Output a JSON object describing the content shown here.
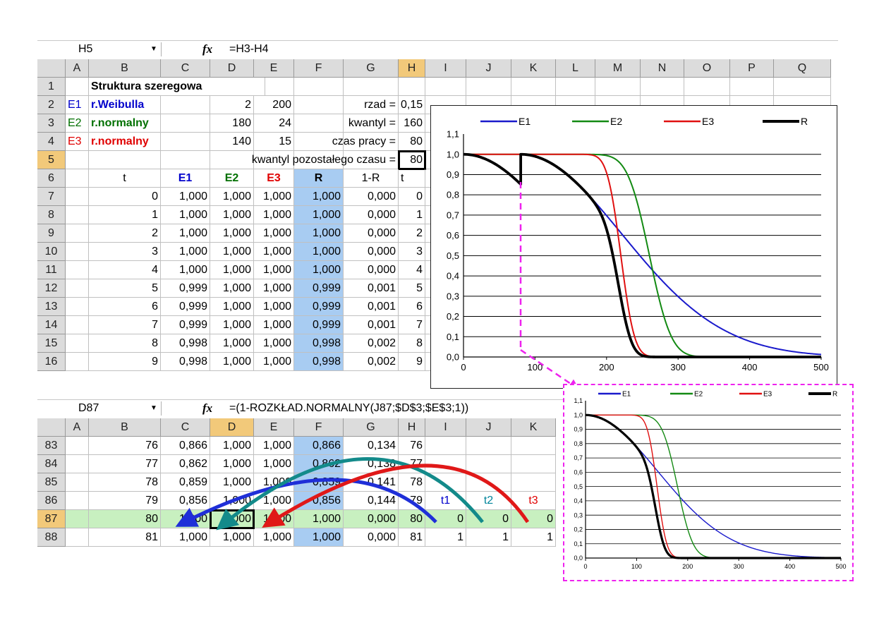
{
  "sheet1": {
    "namebox": "H5",
    "formula": "=H3-H4",
    "fx_label": "fx",
    "columns": [
      "A",
      "B",
      "C",
      "D",
      "E",
      "F",
      "G",
      "H",
      "I",
      "J",
      "K",
      "L",
      "M",
      "N",
      "O",
      "P",
      "Q"
    ],
    "title": "Struktura szeregowa",
    "params": {
      "e1_id": "E1",
      "e1_name": "r.Weibulla",
      "e1_p1": "2",
      "e1_p2": "200",
      "e2_id": "E2",
      "e2_name": "r.normalny",
      "e2_p1": "180",
      "e2_p2": "24",
      "e3_id": "E3",
      "e3_name": "r.normalny",
      "e3_p1": "140",
      "e3_p2": "15"
    },
    "labels": {
      "rzad": "rzad =",
      "kwantyl": "kwantyl =",
      "czas_pracy": "czas pracy =",
      "kwantyl_poz": "kwantyl pozostałego czasu ="
    },
    "values": {
      "rzad": "0,15",
      "kwantyl": "160",
      "czas_pracy": "80",
      "kwantyl_poz": "80"
    },
    "table_headers": [
      "t",
      "E1",
      "E2",
      "E3",
      "R",
      "1-R",
      "t"
    ],
    "row_numbers": [
      "1",
      "2",
      "3",
      "4",
      "5",
      "6",
      "7",
      "8",
      "9",
      "10",
      "11",
      "12",
      "13",
      "14",
      "15",
      "16"
    ],
    "rows": [
      [
        "0",
        "1,000",
        "1,000",
        "1,000",
        "1,000",
        "0,000",
        "0"
      ],
      [
        "1",
        "1,000",
        "1,000",
        "1,000",
        "1,000",
        "0,000",
        "1"
      ],
      [
        "2",
        "1,000",
        "1,000",
        "1,000",
        "1,000",
        "0,000",
        "2"
      ],
      [
        "3",
        "1,000",
        "1,000",
        "1,000",
        "1,000",
        "0,000",
        "3"
      ],
      [
        "4",
        "1,000",
        "1,000",
        "1,000",
        "1,000",
        "0,000",
        "4"
      ],
      [
        "5",
        "0,999",
        "1,000",
        "1,000",
        "0,999",
        "0,001",
        "5"
      ],
      [
        "6",
        "0,999",
        "1,000",
        "1,000",
        "0,999",
        "0,001",
        "6"
      ],
      [
        "7",
        "0,999",
        "1,000",
        "1,000",
        "0,999",
        "0,001",
        "7"
      ],
      [
        "8",
        "0,998",
        "1,000",
        "1,000",
        "0,998",
        "0,002",
        "8"
      ],
      [
        "9",
        "0,998",
        "1,000",
        "1,000",
        "0,998",
        "0,002",
        "9"
      ]
    ]
  },
  "sheet2": {
    "namebox": "D87",
    "formula": "=(1-ROZKŁAD.NORMALNY(J87;$D$3;$E$3;1))",
    "fx_label": "fx",
    "columns": [
      "A",
      "B",
      "C",
      "D",
      "E",
      "F",
      "G",
      "H",
      "I",
      "J",
      "K"
    ],
    "row_numbers": [
      "83",
      "84",
      "85",
      "86",
      "87",
      "88"
    ],
    "rows": [
      [
        "76",
        "0,866",
        "1,000",
        "1,000",
        "0,866",
        "0,134",
        "76",
        "",
        "",
        ""
      ],
      [
        "77",
        "0,862",
        "1,000",
        "1,000",
        "0,862",
        "0,138",
        "77",
        "",
        "",
        ""
      ],
      [
        "78",
        "0,859",
        "1,000",
        "1,000",
        "0,859",
        "0,141",
        "78",
        "",
        "",
        ""
      ],
      [
        "79",
        "0,856",
        "1,000",
        "1,000",
        "0,856",
        "0,144",
        "79",
        "t1",
        "t2",
        "t3"
      ],
      [
        "80",
        "1,000",
        "1,000",
        "1,000",
        "1,000",
        "0,000",
        "80",
        "0",
        "0",
        "0"
      ],
      [
        "81",
        "1,000",
        "1,000",
        "1,000",
        "1,000",
        "0,000",
        "81",
        "1",
        "1",
        "1"
      ]
    ]
  },
  "colors": {
    "E1": "#1a1acc",
    "E2": "#138a13",
    "E3": "#e01010",
    "R": "#000000",
    "arrow_blue": "#1f2fd8",
    "arrow_teal": "#138a8a",
    "arrow_red": "#e01818",
    "dashed": "#ee22ee"
  },
  "chart_data": [
    {
      "type": "line",
      "x_ticks": [
        "0",
        "100",
        "200",
        "300",
        "400",
        "500"
      ],
      "y_ticks": [
        "0,0",
        "0,1",
        "0,2",
        "0,3",
        "0,4",
        "0,5",
        "0,6",
        "0,7",
        "0,8",
        "0,9",
        "1,0",
        "1,1"
      ],
      "xlim": [
        0,
        500
      ],
      "ylim": [
        0,
        1.1
      ],
      "legend": [
        "E1",
        "E2",
        "E3",
        "R"
      ],
      "legend_position": "top",
      "grid": "horizontal",
      "series": [
        {
          "name": "E1",
          "distribution": "weibull",
          "shape": 2,
          "scale": 200,
          "restart_at": 80
        },
        {
          "name": "E2",
          "distribution": "normal_survival",
          "mean": 180,
          "sd": 24,
          "restart_at": 80
        },
        {
          "name": "E3",
          "distribution": "normal_survival",
          "mean": 140,
          "sd": 15,
          "restart_at": 80
        },
        {
          "name": "R",
          "distribution": "product",
          "restart_at": 80
        }
      ]
    },
    {
      "type": "line",
      "x_ticks": [
        "0",
        "100",
        "200",
        "300",
        "400",
        "500"
      ],
      "y_ticks": [
        "0,0",
        "0,1",
        "0,2",
        "0,3",
        "0,4",
        "0,5",
        "0,6",
        "0,7",
        "0,8",
        "0,9",
        "1,0",
        "1,1"
      ],
      "xlim": [
        0,
        500
      ],
      "ylim": [
        0,
        1.1
      ],
      "legend": [
        "E1",
        "E2",
        "E3",
        "R"
      ],
      "legend_position": "top",
      "grid": "horizontal",
      "series": [
        {
          "name": "E1",
          "distribution": "weibull",
          "shape": 2,
          "scale": 200
        },
        {
          "name": "E2",
          "distribution": "normal_survival",
          "mean": 180,
          "sd": 24
        },
        {
          "name": "E3",
          "distribution": "normal_survival",
          "mean": 140,
          "sd": 15
        },
        {
          "name": "R",
          "distribution": "product"
        }
      ]
    }
  ]
}
